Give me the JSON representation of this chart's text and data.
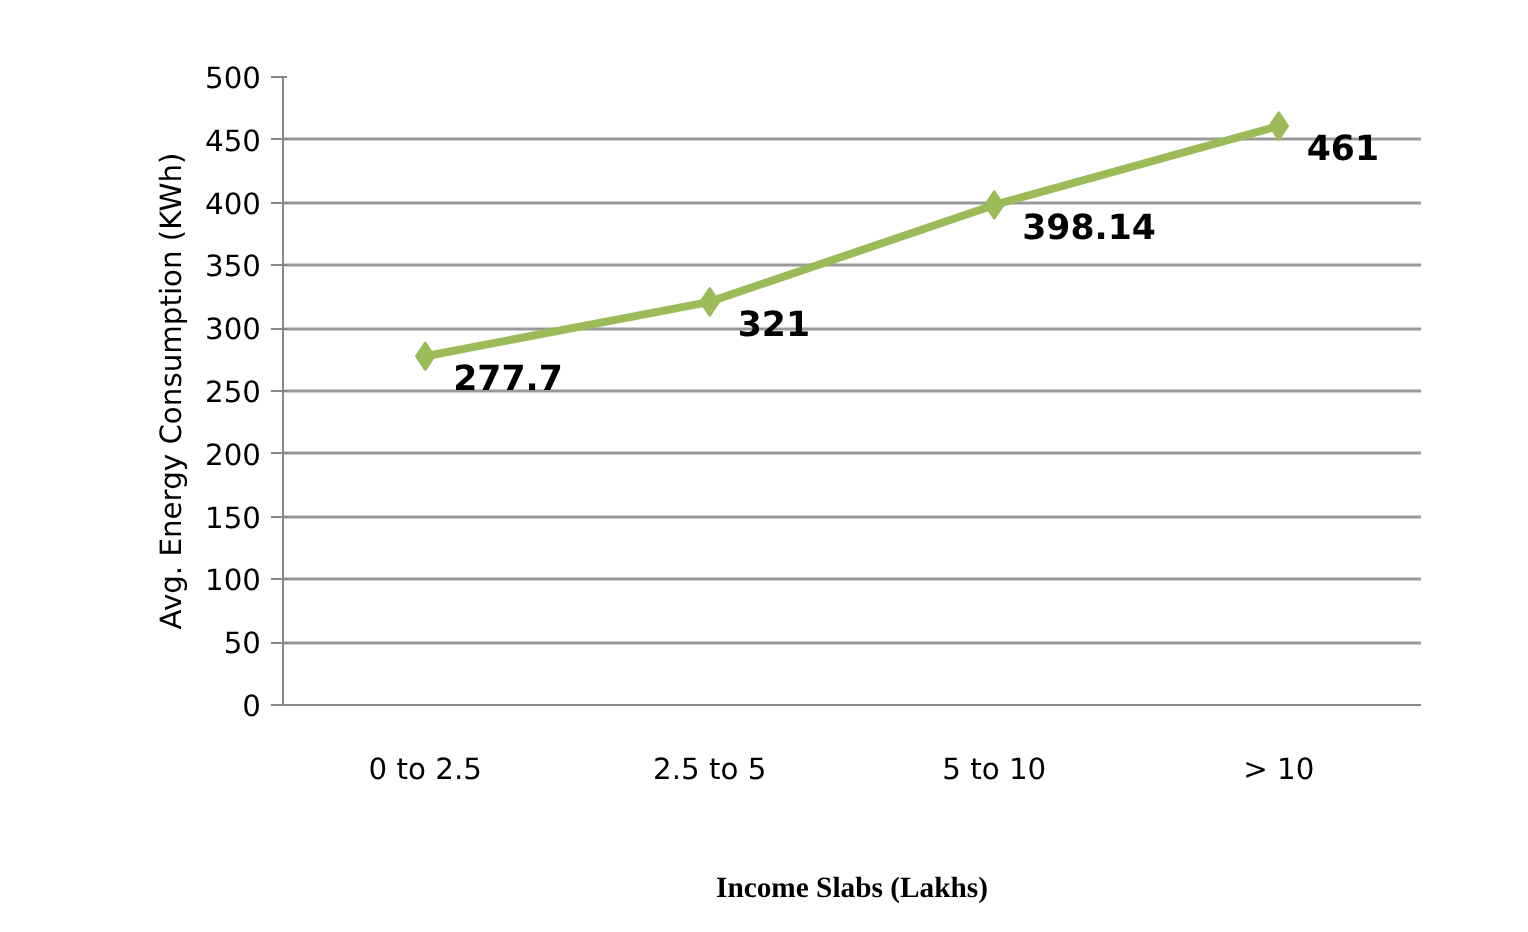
{
  "chart_data": {
    "type": "line",
    "xlabel": "Income Slabs (Lakhs)",
    "ylabel": "Avg. Energy Consumption (KWh)",
    "categories": [
      "0 to 2.5",
      "2.5 to 5",
      "5 to 10",
      "> 10"
    ],
    "series": [
      {
        "color": "#9bbb59",
        "values": [
          277.7,
          321,
          398.14,
          461
        ]
      }
    ],
    "ylim": [
      0,
      500
    ],
    "yticks": [
      0,
      50,
      100,
      150,
      200,
      250,
      300,
      350,
      400,
      450,
      500
    ],
    "grid": "y",
    "marker": "diamond",
    "data_labels": true
  }
}
